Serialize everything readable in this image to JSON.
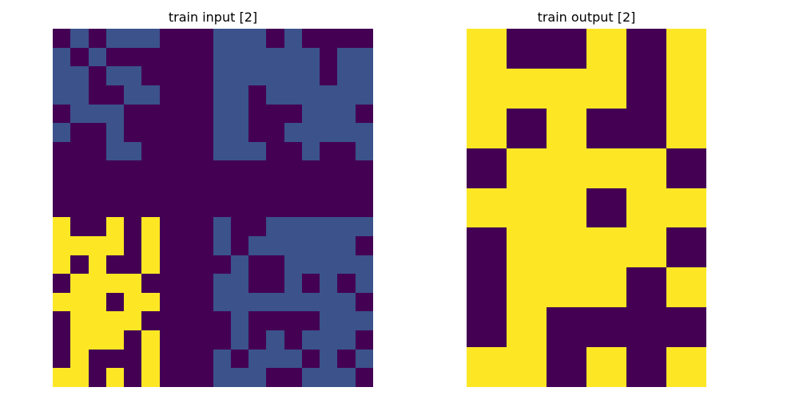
{
  "palette": {
    "0": "#440154",
    "1": "#3b528b",
    "4": "#fde725"
  },
  "panels": {
    "input": {
      "title": "train input [2]",
      "grid": [
        [
          0,
          1,
          0,
          1,
          1,
          1,
          0,
          0,
          0,
          1,
          1,
          1,
          0,
          1,
          0,
          0,
          0,
          0
        ],
        [
          1,
          0,
          1,
          0,
          0,
          0,
          0,
          0,
          0,
          1,
          1,
          1,
          1,
          1,
          1,
          0,
          1,
          1
        ],
        [
          1,
          1,
          0,
          1,
          1,
          0,
          0,
          0,
          0,
          1,
          1,
          1,
          1,
          1,
          1,
          0,
          1,
          1
        ],
        [
          1,
          1,
          0,
          0,
          1,
          1,
          0,
          0,
          0,
          1,
          1,
          0,
          1,
          1,
          1,
          1,
          1,
          1
        ],
        [
          0,
          1,
          1,
          1,
          0,
          0,
          0,
          0,
          0,
          1,
          1,
          0,
          0,
          0,
          1,
          1,
          1,
          0
        ],
        [
          1,
          0,
          0,
          1,
          0,
          0,
          0,
          0,
          0,
          1,
          1,
          0,
          0,
          1,
          1,
          1,
          1,
          1
        ],
        [
          0,
          0,
          0,
          1,
          1,
          0,
          0,
          0,
          0,
          1,
          1,
          1,
          0,
          0,
          1,
          0,
          0,
          1
        ],
        [
          0,
          0,
          0,
          0,
          0,
          0,
          0,
          0,
          0,
          0,
          0,
          0,
          0,
          0,
          0,
          0,
          0,
          0
        ],
        [
          0,
          0,
          0,
          0,
          0,
          0,
          0,
          0,
          0,
          0,
          0,
          0,
          0,
          0,
          0,
          0,
          0,
          0
        ],
        [
          0,
          0,
          0,
          0,
          0,
          0,
          0,
          0,
          0,
          0,
          0,
          0,
          0,
          0,
          0,
          0,
          0,
          0
        ],
        [
          4,
          0,
          0,
          4,
          0,
          4,
          0,
          0,
          0,
          1,
          0,
          0,
          1,
          1,
          1,
          1,
          1,
          1
        ],
        [
          4,
          4,
          4,
          4,
          0,
          4,
          0,
          0,
          0,
          1,
          0,
          1,
          1,
          1,
          1,
          1,
          1,
          0
        ],
        [
          4,
          0,
          4,
          0,
          0,
          4,
          0,
          0,
          0,
          0,
          1,
          0,
          0,
          1,
          1,
          1,
          1,
          1
        ],
        [
          0,
          4,
          4,
          4,
          4,
          0,
          0,
          0,
          0,
          1,
          1,
          0,
          0,
          1,
          0,
          1,
          0,
          1
        ],
        [
          4,
          4,
          4,
          0,
          4,
          4,
          0,
          0,
          0,
          1,
          1,
          1,
          1,
          1,
          1,
          1,
          1,
          0
        ],
        [
          0,
          4,
          4,
          4,
          4,
          0,
          0,
          0,
          0,
          0,
          1,
          0,
          0,
          0,
          0,
          1,
          1,
          1
        ],
        [
          0,
          4,
          4,
          4,
          0,
          4,
          0,
          0,
          0,
          0,
          1,
          0,
          1,
          0,
          1,
          1,
          1,
          0
        ],
        [
          0,
          4,
          0,
          0,
          0,
          4,
          0,
          0,
          0,
          1,
          0,
          1,
          1,
          1,
          0,
          1,
          0,
          1
        ],
        [
          4,
          4,
          0,
          4,
          0,
          4,
          0,
          0,
          0,
          1,
          1,
          1,
          0,
          0,
          1,
          1,
          1,
          0
        ]
      ]
    },
    "output": {
      "title": "train output [2]",
      "grid": [
        [
          4,
          0,
          0,
          4,
          0,
          4
        ],
        [
          4,
          4,
          4,
          4,
          0,
          4
        ],
        [
          4,
          0,
          4,
          0,
          0,
          4
        ],
        [
          0,
          4,
          4,
          4,
          4,
          0
        ],
        [
          4,
          4,
          4,
          0,
          4,
          4
        ],
        [
          0,
          4,
          4,
          4,
          4,
          0
        ],
        [
          0,
          4,
          4,
          4,
          0,
          4
        ],
        [
          0,
          4,
          0,
          0,
          0,
          0
        ],
        [
          4,
          4,
          0,
          4,
          0,
          4
        ]
      ]
    }
  }
}
